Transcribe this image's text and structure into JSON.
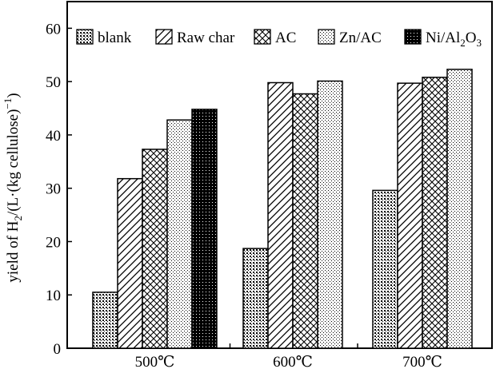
{
  "chart_data": {
    "type": "bar",
    "title": "",
    "xlabel": "",
    "ylabel": "yield of H₂/(L·(kg cellulose)⁻¹)",
    "ylabel_parts": {
      "pre": "yield of H",
      "sub": "2",
      "mid": "/(L·(kg cellulose)",
      "sup": "−1",
      "post": ")"
    },
    "categories": [
      "500℃",
      "600℃",
      "700℃"
    ],
    "ylim": [
      0,
      65
    ],
    "yticks": [
      0,
      10,
      20,
      30,
      40,
      50,
      60
    ],
    "grid": false,
    "legend_position": "top",
    "series": [
      {
        "name": "blank",
        "pattern": "dots-dense",
        "values": [
          10.5,
          18.7,
          29.6
        ]
      },
      {
        "name": "Raw char",
        "pattern": "diagonal",
        "values": [
          31.8,
          49.8,
          49.7
        ]
      },
      {
        "name": "AC",
        "pattern": "crosshatch",
        "values": [
          37.3,
          47.7,
          50.8
        ]
      },
      {
        "name": "Zn/AC",
        "pattern": "dots-light",
        "values": [
          42.8,
          50.1,
          52.3
        ]
      },
      {
        "name": "Ni/Al₂O₃",
        "pattern": "black-dots",
        "values": [
          44.8,
          null,
          null
        ]
      }
    ],
    "legend_rich": [
      {
        "pre": "",
        "sub": "",
        "mid": "",
        "sub2": ""
      },
      {
        "pre": "",
        "sub": "",
        "mid": "",
        "sub2": ""
      },
      {
        "pre": "",
        "sub": "",
        "mid": "",
        "sub2": ""
      },
      {
        "pre": "",
        "sub": "",
        "mid": "",
        "sub2": ""
      },
      {
        "pre": "Ni/Al",
        "sub": "2",
        "mid": "O",
        "sub2": "3"
      }
    ]
  }
}
